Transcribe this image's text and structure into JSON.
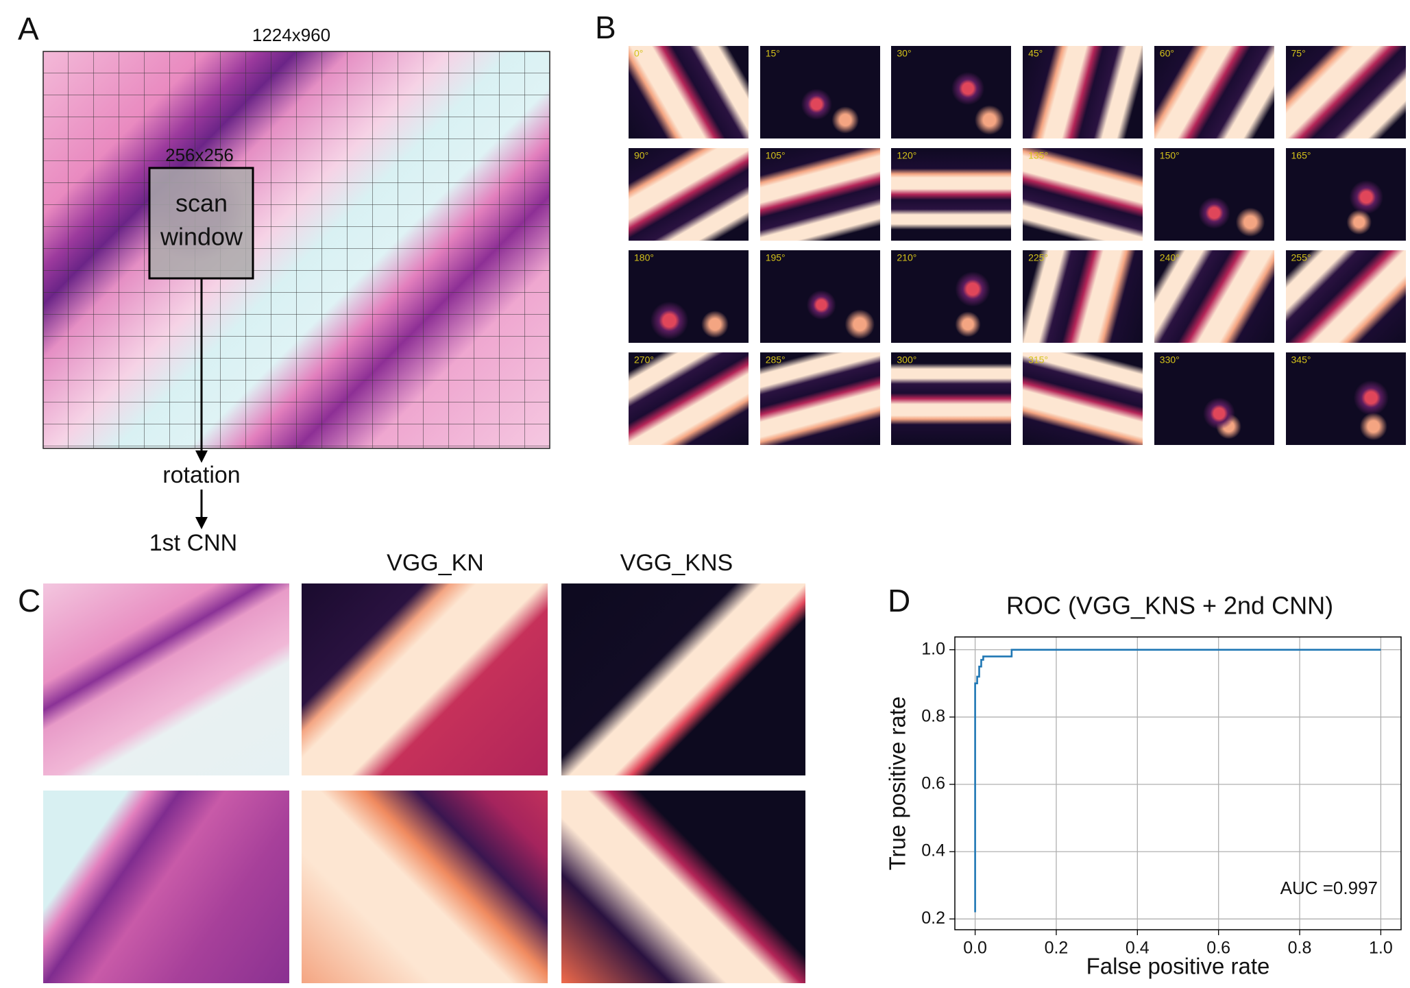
{
  "panel_a": {
    "letter": "A",
    "image_size": "1224x960",
    "window_size": "256x256",
    "window_label": [
      "scan",
      "window"
    ],
    "steps": [
      "rotation",
      "1st CNN"
    ]
  },
  "panel_b": {
    "letter": "B",
    "angles": [
      "0°",
      "15°",
      "30°",
      "45°",
      "60°",
      "75°",
      "90°",
      "105°",
      "120°",
      "135°",
      "150°",
      "165°",
      "180°",
      "195°",
      "210°",
      "225°",
      "240°",
      "255°",
      "270°",
      "285°",
      "300°",
      "315°",
      "330°",
      "345°"
    ]
  },
  "panel_c": {
    "letter": "C",
    "columns": [
      "VGG_KN",
      "VGG_KNS"
    ]
  },
  "panel_d": {
    "letter": "D"
  },
  "chart_data": {
    "type": "line",
    "title": "ROC (VGG_KNS + 2nd CNN)",
    "x_label": "False positive rate",
    "y_label": "True positive rate",
    "annotation": "AUC =0.997",
    "series": [
      {
        "name": "ROC",
        "color": "#1f77b4",
        "x": [
          0,
          0,
          0.005,
          0.005,
          0.01,
          0.01,
          0.015,
          0.015,
          0.02,
          0.02,
          0.09,
          0.09,
          1.0
        ],
        "values": [
          0.22,
          0.9,
          0.9,
          0.92,
          0.92,
          0.95,
          0.95,
          0.97,
          0.97,
          0.98,
          0.98,
          1.0,
          1.0
        ]
      }
    ],
    "xlim": [
      -0.05,
      1.05
    ],
    "ylim": [
      0.168,
      1.038
    ],
    "xticks": [
      {
        "value": 0,
        "label": "0.0"
      },
      0.2,
      0.4,
      0.6,
      0.8,
      {
        "value": 1,
        "label": "1.0"
      }
    ],
    "yticks": [
      0.2,
      0.4,
      0.6,
      0.8,
      {
        "value": 1,
        "label": "1.0"
      }
    ],
    "grid": true
  }
}
